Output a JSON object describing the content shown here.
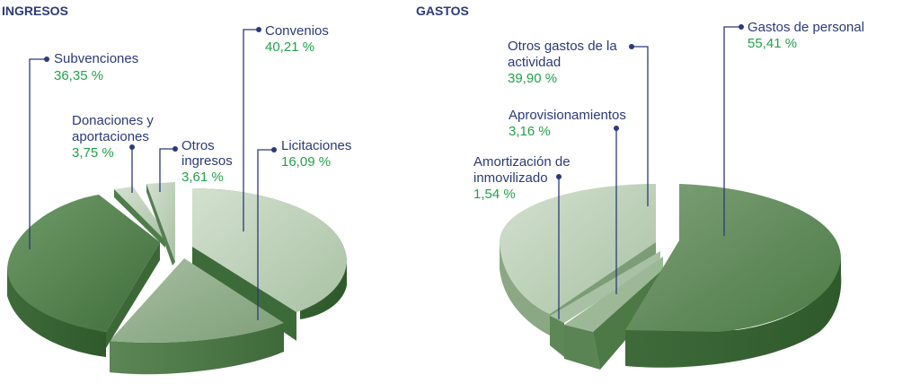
{
  "chart_data": [
    {
      "type": "pie",
      "title": "INGRESOS",
      "slices": [
        {
          "name": "Convenios",
          "value": 40.21,
          "label": "40,21 %",
          "color": "#9fb99a"
        },
        {
          "name": "Licitaciones",
          "value": 16.09,
          "label": "16,09 %",
          "color": "#8dab87"
        },
        {
          "name": "Subvenciones",
          "value": 36.35,
          "label": "36,35 %",
          "color": "#4d7f48"
        },
        {
          "name": "Donaciones y aportaciones",
          "value": 3.75,
          "label": "3,75 %",
          "color": "#bcd0b8"
        },
        {
          "name": "Otros ingresos",
          "value": 3.61,
          "label": "3,61 %",
          "color": "#c9d8c5"
        }
      ]
    },
    {
      "type": "pie",
      "title": "GASTOS",
      "slices": [
        {
          "name": "Gastos de personal",
          "value": 55.41,
          "label": "55,41 %",
          "color": "#5e8a58"
        },
        {
          "name": "Otros gastos de la actividad",
          "value": 39.9,
          "label": "39,90 %",
          "color": "#b3c9ae"
        },
        {
          "name": "Aprovisionamientos",
          "value": 3.16,
          "label": "3,16 %",
          "color": "#7fa078"
        },
        {
          "name": "Amortización de inmovilizado",
          "value": 1.54,
          "label": "1,54 %",
          "color": "#6f9468"
        }
      ]
    }
  ],
  "colors": {
    "label_text": "#2b3a7a",
    "value_text": "#21a24a",
    "leader_line": "#2b3a7a"
  }
}
